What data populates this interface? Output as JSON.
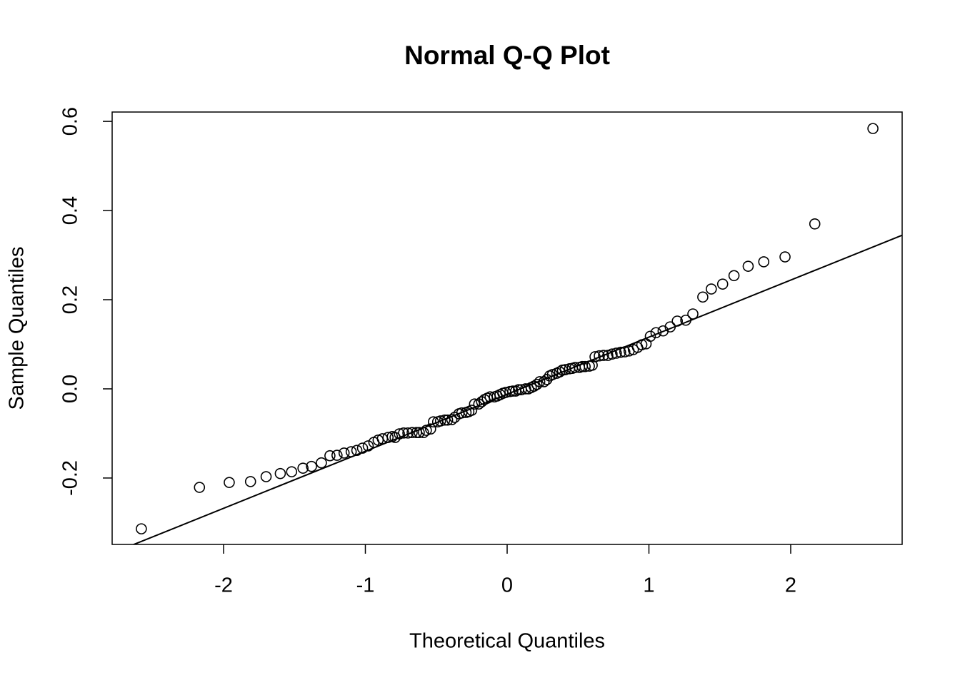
{
  "chart_data": {
    "type": "scatter",
    "title": "Normal Q-Q Plot",
    "x_label": "Theoretical Quantiles",
    "y_label": "Sample Quantiles",
    "x": [
      -2.58,
      -2.17,
      -1.96,
      -1.81,
      -1.7,
      -1.6,
      -1.52,
      -1.44,
      -1.38,
      -1.31,
      -1.25,
      -1.2,
      -1.15,
      -1.1,
      -1.06,
      -1.02,
      -0.98,
      -0.94,
      -0.91,
      -0.88,
      -0.84,
      -0.81,
      -0.79,
      -0.76,
      -0.73,
      -0.7,
      -0.67,
      -0.64,
      -0.62,
      -0.59,
      -0.57,
      -0.54,
      -0.52,
      -0.49,
      -0.47,
      -0.44,
      -0.42,
      -0.39,
      -0.37,
      -0.34,
      -0.32,
      -0.29,
      -0.27,
      -0.25,
      -0.23,
      -0.2,
      -0.18,
      -0.16,
      -0.14,
      -0.12,
      -0.09,
      -0.07,
      -0.05,
      -0.03,
      -0.01,
      0.02,
      0.04,
      0.06,
      0.08,
      0.1,
      0.13,
      0.15,
      0.17,
      0.19,
      0.21,
      0.23,
      0.26,
      0.28,
      0.3,
      0.32,
      0.35,
      0.37,
      0.39,
      0.41,
      0.44,
      0.46,
      0.48,
      0.51,
      0.53,
      0.55,
      0.58,
      0.6,
      0.62,
      0.65,
      0.68,
      0.71,
      0.74,
      0.77,
      0.8,
      0.83,
      0.86,
      0.89,
      0.92,
      0.95,
      0.98,
      1.01,
      1.05,
      1.1,
      1.15,
      1.2,
      1.26,
      1.31,
      1.38,
      1.44,
      1.52,
      1.6,
      1.7,
      1.81,
      1.96,
      2.17,
      2.58
    ],
    "y": [
      -0.314,
      -0.221,
      -0.21,
      -0.208,
      -0.197,
      -0.19,
      -0.186,
      -0.178,
      -0.174,
      -0.166,
      -0.15,
      -0.149,
      -0.144,
      -0.141,
      -0.138,
      -0.133,
      -0.128,
      -0.12,
      -0.115,
      -0.112,
      -0.109,
      -0.107,
      -0.109,
      -0.101,
      -0.099,
      -0.099,
      -0.098,
      -0.098,
      -0.098,
      -0.098,
      -0.093,
      -0.09,
      -0.074,
      -0.074,
      -0.072,
      -0.07,
      -0.07,
      -0.069,
      -0.064,
      -0.056,
      -0.054,
      -0.053,
      -0.051,
      -0.048,
      -0.034,
      -0.034,
      -0.029,
      -0.024,
      -0.021,
      -0.018,
      -0.018,
      -0.016,
      -0.013,
      -0.01,
      -0.008,
      -0.006,
      -0.005,
      -0.005,
      -0.002,
      -0.002,
      0.0,
      0.0,
      0.003,
      0.006,
      0.01,
      0.016,
      0.016,
      0.021,
      0.029,
      0.032,
      0.035,
      0.038,
      0.042,
      0.043,
      0.045,
      0.046,
      0.048,
      0.048,
      0.05,
      0.05,
      0.051,
      0.053,
      0.072,
      0.074,
      0.075,
      0.075,
      0.078,
      0.08,
      0.082,
      0.083,
      0.085,
      0.088,
      0.093,
      0.099,
      0.101,
      0.118,
      0.126,
      0.13,
      0.139,
      0.152,
      0.154,
      0.168,
      0.206,
      0.224,
      0.235,
      0.254,
      0.275,
      0.285,
      0.296,
      0.37,
      0.584
    ],
    "reference_line": {
      "intercept": -0.012,
      "slope": 0.128
    },
    "xlim": [
      -2.786,
      2.786
    ],
    "ylim": [
      -0.349,
      0.621
    ],
    "xticks": [
      -2,
      -1,
      0,
      1,
      2
    ],
    "yticks": [
      {
        "value": -0.2,
        "label": "-0.2"
      },
      {
        "value": 0,
        "label": "0.0"
      },
      {
        "value": 0.2,
        "label": "0.2"
      },
      {
        "value": 0.4,
        "label": "0.4"
      },
      {
        "value": 0.6,
        "label": "0.6"
      }
    ],
    "color": "#000000"
  }
}
